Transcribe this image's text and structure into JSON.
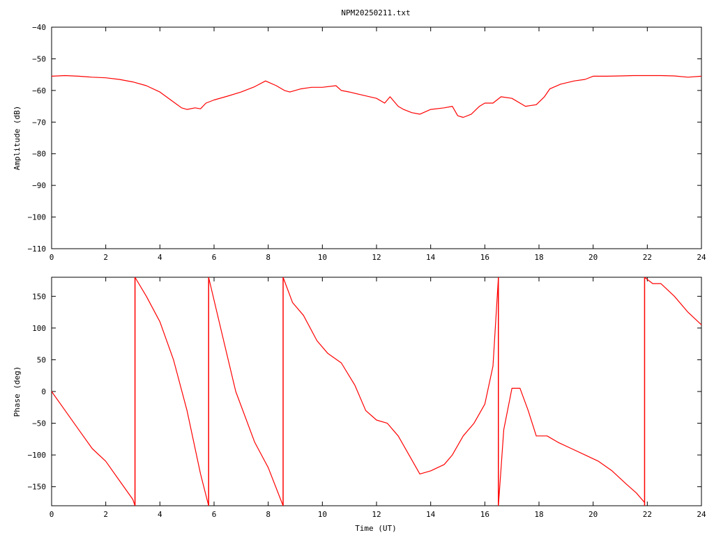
{
  "title": "NPM20250211.txt",
  "colors": {
    "series": "#ff0000",
    "axes": "#000000",
    "background": "#ffffff"
  },
  "chart_data": [
    {
      "type": "line",
      "name": "amplitude-panel",
      "xlabel": "",
      "ylabel": "Amplitude (dB)",
      "xlim": [
        0,
        24
      ],
      "ylim": [
        -110,
        -40
      ],
      "xticks": [
        "0",
        "2",
        "4",
        "6",
        "8",
        "10",
        "12",
        "14",
        "16",
        "18",
        "20",
        "22",
        "24"
      ],
      "yticks": [
        "−40",
        "−50",
        "−60",
        "−70",
        "−80",
        "−90",
        "−100",
        "−110"
      ],
      "grid": false,
      "series": [
        {
          "x": [
            0,
            0.5,
            1,
            1.5,
            2,
            2.5,
            3,
            3.5,
            4,
            4.4,
            4.8,
            5.0,
            5.3,
            5.5,
            5.7,
            6.0,
            6.5,
            7.0,
            7.5,
            7.9,
            8.3,
            8.6,
            8.8,
            9.2,
            9.6,
            10.0,
            10.5,
            10.7,
            11.0,
            11.5,
            12.0,
            12.3,
            12.5,
            12.8,
            13.0,
            13.3,
            13.6,
            14.0,
            14.5,
            14.8,
            15.0,
            15.2,
            15.5,
            15.8,
            16.0,
            16.3,
            16.6,
            17.0,
            17.5,
            17.9,
            18.2,
            18.4,
            18.8,
            19.3,
            19.7,
            20.0,
            20.5,
            21.0,
            21.5,
            22.0,
            22.5,
            23.0,
            23.5,
            24.0
          ],
          "y": [
            -55.5,
            -55.3,
            -55.5,
            -55.8,
            -56.0,
            -56.5,
            -57.3,
            -58.5,
            -60.5,
            -63.0,
            -65.5,
            -66.0,
            -65.5,
            -65.8,
            -64.0,
            -63.0,
            -61.8,
            -60.5,
            -58.8,
            -57.0,
            -58.5,
            -60.0,
            -60.5,
            -59.5,
            -59.0,
            -59.0,
            -58.5,
            -60.0,
            -60.5,
            -61.5,
            -62.5,
            -64.0,
            -62.0,
            -65.0,
            -66.0,
            -67.0,
            -67.5,
            -66.0,
            -65.5,
            -65.0,
            -68.0,
            -68.5,
            -67.5,
            -65.0,
            -64.0,
            -64.0,
            -62.0,
            -62.5,
            -65.0,
            -64.5,
            -62.0,
            -59.5,
            -58.0,
            -57.0,
            -56.5,
            -55.5,
            -55.5,
            -55.4,
            -55.3,
            -55.3,
            -55.3,
            -55.4,
            -55.8,
            -55.5
          ]
        }
      ]
    },
    {
      "type": "line",
      "name": "phase-panel",
      "xlabel": "Time (UT)",
      "ylabel": "Phase (deg)",
      "xlim": [
        0,
        24
      ],
      "ylim": [
        -180,
        180
      ],
      "xticks": [
        "0",
        "2",
        "4",
        "6",
        "8",
        "10",
        "12",
        "14",
        "16",
        "18",
        "20",
        "22",
        "24"
      ],
      "yticks": [
        "150",
        "100",
        "50",
        "0",
        "−50",
        "−100",
        "−150"
      ],
      "grid": false,
      "series": [
        {
          "x": [
            0,
            0.5,
            1.0,
            1.5,
            2.0,
            2.5,
            3.0,
            3.08,
            null,
            3.08,
            3.5,
            4.0,
            4.5,
            5.0,
            5.5,
            5.8,
            null,
            5.8,
            6.3,
            6.8,
            7.5,
            8.0,
            8.55,
            null,
            8.55,
            8.9,
            9.3,
            9.8,
            10.2,
            10.7,
            11.2,
            11.6,
            12.0,
            12.4,
            12.8,
            13.2,
            13.6,
            14.0,
            14.5,
            14.8,
            15.2,
            15.6,
            16.0,
            16.3,
            16.5,
            null,
            16.5,
            16.7,
            17.0,
            17.3,
            17.6,
            17.9,
            18.3,
            18.7,
            19.2,
            19.7,
            20.2,
            20.7,
            21.2,
            21.6,
            21.9,
            null,
            21.9,
            22.2,
            22.5,
            23.0,
            23.5,
            24.0
          ],
          "y": [
            0,
            -30,
            -60,
            -90,
            -110,
            -140,
            -170,
            -180,
            null,
            180,
            150,
            110,
            50,
            -30,
            -130,
            -180,
            null,
            180,
            90,
            0,
            -80,
            -120,
            -180,
            null,
            180,
            140,
            120,
            80,
            60,
            45,
            10,
            -30,
            -45,
            -50,
            -70,
            -100,
            -130,
            -125,
            -115,
            -100,
            -70,
            -50,
            -20,
            40,
            180,
            null,
            -180,
            -60,
            5,
            5,
            -30,
            -70,
            -70,
            -80,
            -90,
            -100,
            -110,
            -125,
            -145,
            -160,
            -175,
            null,
            180,
            170,
            170,
            150,
            125,
            105
          ]
        }
      ]
    }
  ]
}
